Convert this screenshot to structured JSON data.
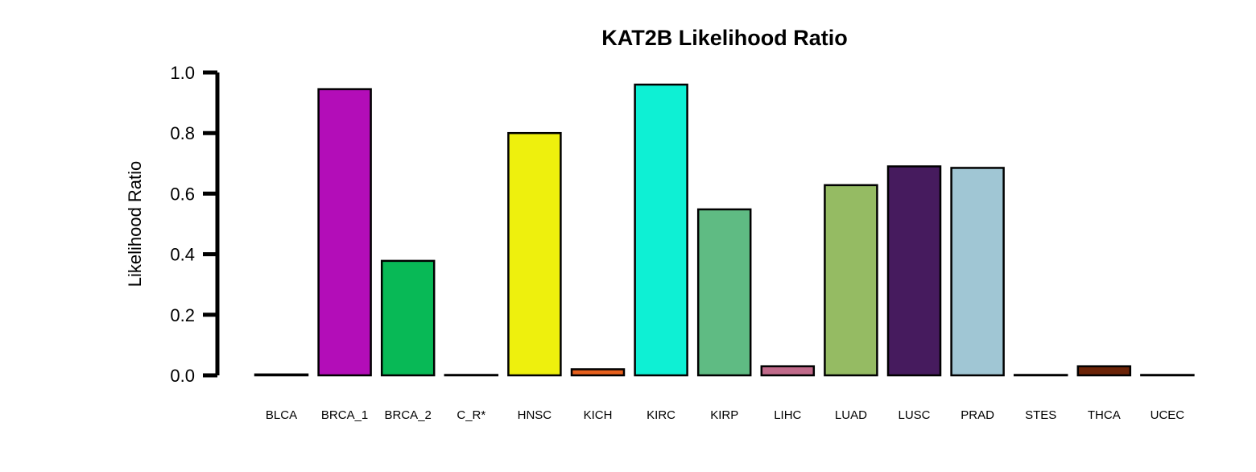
{
  "chart_data": {
    "type": "bar",
    "title": "KAT2B Likelihood Ratio",
    "xlabel": "",
    "ylabel": "Likelihood Ratio",
    "ylim": [
      0,
      1.0
    ],
    "yticks": [
      "0.0",
      "0.2",
      "0.4",
      "0.6",
      "0.8",
      "1.0"
    ],
    "categories": [
      "BLCA",
      "BRCA_1",
      "BRCA_2",
      "C_R*",
      "HNSC",
      "KICH",
      "KIRC",
      "KIRP",
      "LIHC",
      "LUAD",
      "LUSC",
      "PRAD",
      "STES",
      "THCA",
      "UCEC"
    ],
    "values": [
      0.003,
      0.945,
      0.378,
      0.001,
      0.8,
      0.02,
      0.96,
      0.548,
      0.03,
      0.628,
      0.69,
      0.685,
      0.001,
      0.03,
      0.001
    ],
    "colors": [
      "#000000",
      "#B30DB8",
      "#08B956",
      "#000000",
      "#EEF00D",
      "#E8601C",
      "#0EF0D4",
      "#5FBB83",
      "#C06A8A",
      "#95BB63",
      "#461B5E",
      "#A0C6D4",
      "#000000",
      "#6B2307",
      "#000000"
    ],
    "grid": false,
    "legend": "none"
  }
}
